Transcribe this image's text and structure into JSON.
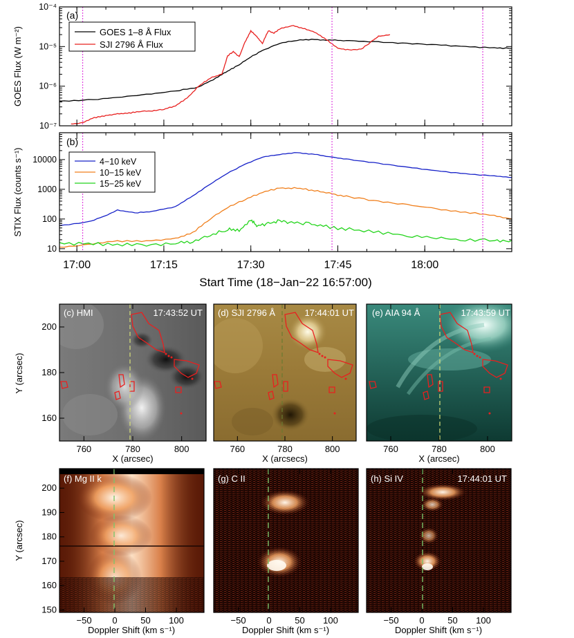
{
  "chart_data": [
    {
      "panel": "(a)",
      "type": "line",
      "ylabel": "GOES Flux (W m⁻²)",
      "yscale": "log",
      "ylim": [
        1e-07,
        0.0001
      ],
      "yticks": [
        "10⁻⁷",
        "10⁻⁶",
        "10⁻⁵",
        "10⁻⁴"
      ],
      "xlim_minutes_from_1657": [
        0,
        78
      ],
      "xticks": [
        "17:00",
        "17:15",
        "17:30",
        "17:45",
        "18:00"
      ],
      "legend_position": "top-left",
      "vlines": [
        "17:01",
        "17:44",
        "18:10"
      ],
      "series": [
        {
          "name": "GOES 1–8 Å Flux",
          "color": "#000000",
          "x": [
            0,
            5,
            10,
            15,
            20,
            24,
            27,
            29,
            31,
            33,
            35,
            38,
            41,
            44,
            47,
            50,
            55,
            60,
            65,
            70,
            75,
            78
          ],
          "y": [
            4.2e-07,
            4.5e-07,
            5.2e-07,
            6.2e-07,
            7.5e-07,
            9.5e-07,
            1.6e-06,
            2.4e-06,
            3.5e-06,
            5.5e-06,
            8e-06,
            1.2e-05,
            1.45e-05,
            1.5e-05,
            1.45e-05,
            1.4e-05,
            1.3e-05,
            1.2e-05,
            1.1e-05,
            1e-05,
            9.2e-06,
            9e-06
          ]
        },
        {
          "name": "SJI 2796 Å Flux",
          "color": "#e8201f",
          "x": [
            2,
            4,
            6,
            8,
            10,
            12,
            14,
            16,
            18,
            20,
            22,
            24,
            26,
            28,
            29,
            30,
            31,
            32,
            33,
            34,
            35,
            36,
            37,
            38,
            40,
            42,
            44,
            46,
            48,
            50,
            52,
            54,
            55,
            57
          ],
          "y": [
            1.1e-07,
            1.2e-07,
            1.6e-07,
            1.8e-07,
            2e-07,
            2.1e-07,
            2.3e-07,
            2.4e-07,
            2.6e-07,
            3.2e-07,
            5e-07,
            1e-06,
            1.6e-06,
            2e-06,
            5.8e-06,
            7.5e-06,
            5.5e-06,
            1.3e-05,
            2.5e-05,
            1.8e-05,
            1.2e-05,
            2.5e-05,
            2.2e-05,
            2.8e-05,
            3.4e-05,
            2.9e-05,
            2.3e-05,
            1.5e-05,
            9e-06,
            8.2e-06,
            8.5e-06,
            1.4e-05,
            1.8e-05,
            2e-05
          ]
        }
      ]
    },
    {
      "panel": "(b)",
      "type": "line",
      "ylabel": "STIX Flux (counts s⁻¹)",
      "xlabel": "Start Time (18−Jan−22 16:57:00)",
      "yscale": "log",
      "ylim": [
        8,
        80000
      ],
      "yticks": [
        "10",
        "100",
        "1000",
        "10000"
      ],
      "xlim_minutes_from_1657": [
        0,
        78
      ],
      "xticks": [
        "17:00",
        "17:15",
        "17:30",
        "17:45",
        "18:00"
      ],
      "legend_position": "top-left",
      "vlines": [
        "17:01",
        "17:44",
        "18:10"
      ],
      "series": [
        {
          "name": "4−10 keV",
          "color": "#1520c8",
          "x": [
            0,
            5,
            8,
            10,
            13,
            16,
            20,
            23,
            26,
            29,
            32,
            35,
            38,
            41,
            44,
            47,
            50,
            55,
            60,
            65,
            70,
            75,
            78
          ],
          "y": [
            60,
            80,
            130,
            200,
            160,
            180,
            260,
            600,
            1500,
            3500,
            7000,
            12000,
            15000,
            17000,
            15000,
            12000,
            10000,
            7500,
            5500,
            4200,
            3300,
            2800,
            2500
          ]
        },
        {
          "name": "10−15 keV",
          "color": "#f07e1a",
          "x": [
            0,
            5,
            10,
            15,
            20,
            23,
            26,
            29,
            32,
            35,
            38,
            41,
            44,
            47,
            50,
            55,
            60,
            65,
            70,
            75,
            78
          ],
          "y": [
            11,
            14,
            18,
            18,
            22,
            35,
            100,
            250,
            450,
            800,
            1100,
            1100,
            900,
            700,
            550,
            400,
            300,
            220,
            170,
            130,
            100
          ]
        },
        {
          "name": "15−25 keV",
          "color": "#22d41a",
          "x": [
            0,
            5,
            10,
            15,
            20,
            23,
            26,
            29,
            31,
            33,
            34,
            36,
            38,
            40,
            43,
            46,
            50,
            55,
            60,
            65,
            70,
            75,
            78
          ],
          "y": [
            15,
            15,
            14,
            14,
            15,
            18,
            28,
            45,
            40,
            90,
            60,
            70,
            85,
            75,
            70,
            55,
            45,
            35,
            28,
            24,
            20,
            19,
            19
          ]
        }
      ]
    }
  ],
  "image_panels": [
    {
      "label": "(c) HMI",
      "time": "17:43:52 UT",
      "xlabel": "X (arcsec)",
      "ylabel": "Y (arcsec)",
      "xticks": [
        "760",
        "780",
        "800"
      ],
      "yticks": [
        "160",
        "180",
        "200"
      ]
    },
    {
      "label": "(d) SJI 2796 Å",
      "time": "17:44:01 UT",
      "xlabel": "X (arcsecs)",
      "xticks": [
        "760",
        "780",
        "800"
      ]
    },
    {
      "label": "(e) AIA 94 Å",
      "time": "17:43:59 UT",
      "xlabel": "X (arcsec)",
      "xticks": [
        "760",
        "780",
        "800"
      ]
    },
    {
      "label": "(f) Mg II k",
      "time": "",
      "xlabel": "Doppler Shift (km s⁻¹)",
      "ylabel": "Y (arcsec)",
      "xticks": [
        "−50",
        "0",
        "50",
        "100"
      ],
      "yticks": [
        "150",
        "160",
        "170",
        "180",
        "190",
        "200"
      ]
    },
    {
      "label": "(g) C II",
      "time": "",
      "xlabel": "Doppler Shift (km s⁻¹)",
      "xticks": [
        "−50",
        "0",
        "50",
        "100"
      ]
    },
    {
      "label": "(h) Si IV",
      "time": "17:44:01 UT",
      "xlabel": "Doppler Shift (km s⁻¹)",
      "xticks": [
        "−50",
        "0",
        "50",
        "100"
      ]
    }
  ]
}
